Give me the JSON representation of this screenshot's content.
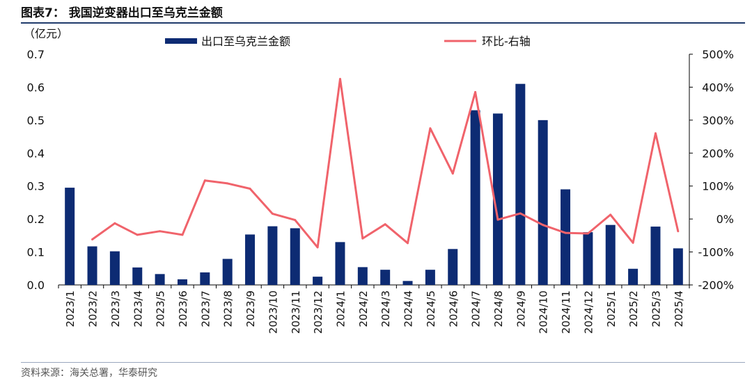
{
  "header": {
    "title": "图表7：  我国逆变器出口至乌克兰金额"
  },
  "footer": {
    "source": "资料来源：海关总署，华泰研究"
  },
  "colors": {
    "bar": "#0d2b73",
    "line": "#f0636b",
    "rule": "#1f3a6b"
  },
  "chart_data": {
    "type": "bar",
    "title": "我国逆变器出口至乌克兰金额",
    "categories": [
      "2023/1",
      "2023/2",
      "2023/3",
      "2023/4",
      "2023/5",
      "2023/6",
      "2023/7",
      "2023/8",
      "2023/9",
      "2023/10",
      "2023/11",
      "2023/12",
      "2024/1",
      "2024/2",
      "2024/3",
      "2024/4",
      "2024/5",
      "2024/6",
      "2024/7",
      "2024/8",
      "2024/9",
      "2024/10",
      "2024/11",
      "2024/12",
      "2025/1",
      "2025/2",
      "2025/3",
      "2025/4"
    ],
    "left_axis": {
      "unit_label": "（亿元）",
      "ylim": [
        0,
        0.7
      ],
      "ticks": [
        "0.0",
        "0.1",
        "0.2",
        "0.3",
        "0.4",
        "0.5",
        "0.6",
        "0.7"
      ]
    },
    "right_axis": {
      "label": "环比-右轴",
      "ylim": [
        -200,
        500
      ],
      "ticks": [
        "-200%",
        "-100%",
        "0%",
        "100%",
        "200%",
        "300%",
        "400%",
        "500%"
      ]
    },
    "series": [
      {
        "name": "出口至乌克兰金额",
        "type": "bar",
        "axis": "left",
        "values": [
          0.295,
          0.117,
          0.102,
          0.053,
          0.033,
          0.017,
          0.038,
          0.079,
          0.153,
          0.178,
          0.172,
          0.025,
          0.13,
          0.054,
          0.046,
          0.012,
          0.046,
          0.109,
          0.53,
          0.52,
          0.61,
          0.5,
          0.29,
          0.16,
          0.182,
          0.049,
          0.177,
          0.111
        ]
      },
      {
        "name": "环比-右轴",
        "type": "line",
        "axis": "right",
        "values": [
          null,
          -62,
          -13,
          -48,
          -37,
          -48,
          117,
          108,
          92,
          16,
          -3,
          -86,
          425,
          -59,
          -16,
          -73,
          275,
          138,
          385,
          -2,
          17,
          -18,
          -42,
          -44,
          13,
          -72,
          260,
          -37
        ]
      }
    ],
    "legend": [
      {
        "label": "出口至乌克兰金额",
        "kind": "bar"
      },
      {
        "label": "环比-右轴",
        "kind": "line"
      }
    ],
    "legend_position": "top",
    "grid": false
  }
}
